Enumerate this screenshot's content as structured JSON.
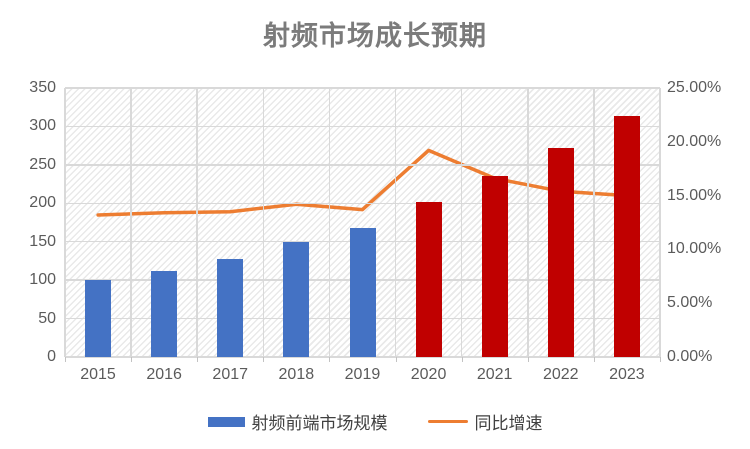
{
  "title": "射频市场成长预期",
  "legend": {
    "bar_label": "射频前端市场规模",
    "line_label": "同比增速"
  },
  "colors": {
    "bar_blue": "#4472C4",
    "bar_red": "#C00000",
    "line_orange": "#ED7D31",
    "gridline": "#D9D9D9",
    "axis_text": "#5B5B5B",
    "title_text": "#7B7B7B"
  },
  "chart_data": {
    "type": "bar",
    "subtype": "bar+line-combo",
    "title": "射频市场成长预期",
    "categories": [
      "2015",
      "2016",
      "2017",
      "2018",
      "2019",
      "2020",
      "2021",
      "2022",
      "2023"
    ],
    "series": [
      {
        "name": "射频前端市场规模",
        "type": "bar",
        "axis": "left",
        "values": [
          100,
          112,
          127,
          149,
          168,
          202,
          236,
          272,
          314
        ],
        "point_colors": [
          "#4472C4",
          "#4472C4",
          "#4472C4",
          "#4472C4",
          "#4472C4",
          "#C00000",
          "#C00000",
          "#C00000",
          "#C00000"
        ]
      },
      {
        "name": "同比增速",
        "type": "line",
        "axis": "right",
        "values_percent": [
          13.2,
          13.4,
          13.5,
          14.2,
          13.7,
          19.2,
          16.6,
          15.4,
          15.0
        ],
        "color": "#ED7D31"
      }
    ],
    "left_axis": {
      "min": 0,
      "max": 350,
      "step": 50,
      "tick_labels": [
        "0",
        "50",
        "100",
        "150",
        "200",
        "250",
        "300",
        "350"
      ]
    },
    "right_axis": {
      "min": 0,
      "max": 25,
      "step": 5,
      "tick_labels": [
        "0.00%",
        "5.00%",
        "10.00%",
        "15.00%",
        "20.00%",
        "25.00%"
      ]
    },
    "grid": true,
    "legend_position": "bottom",
    "plot_background": "diagonal-hatch"
  }
}
